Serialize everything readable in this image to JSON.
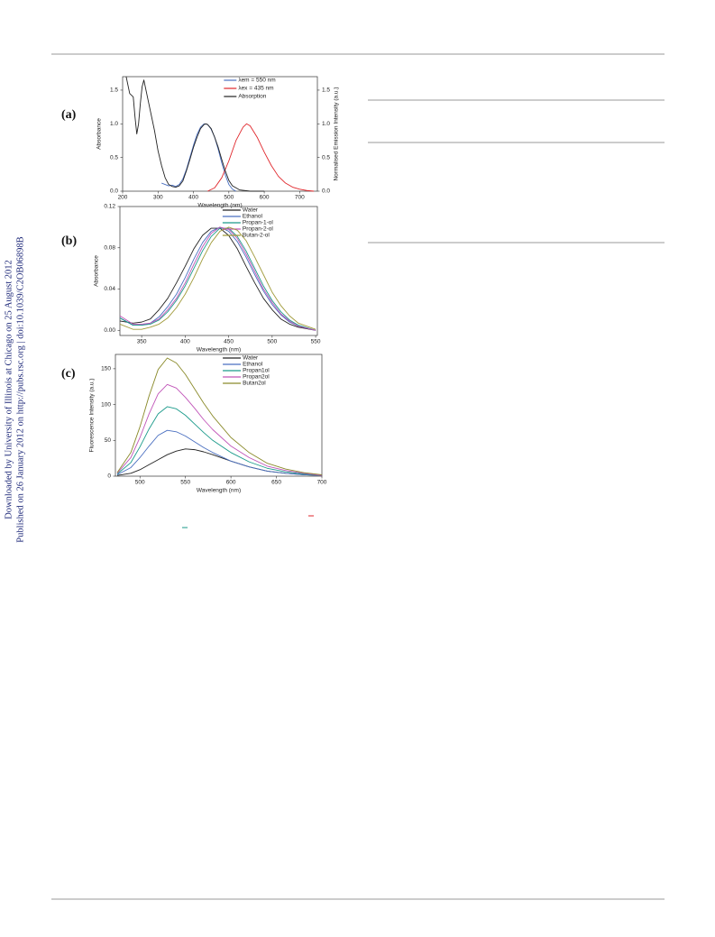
{
  "side_text": [
    "Downloaded by University of Illinois at Chicago on 25 August 2012",
    "Published on 26 January 2012 on http://pubs.rsc.org | doi:10.1039/C2OB06898B"
  ],
  "chart_data": [
    {
      "type": "line",
      "panel": "(a)",
      "xlabel": "Wavelength (nm)",
      "ylabel": "Absorbance",
      "y2label": "Normalised Emission Intensity (a.u.)",
      "xlim": [
        200,
        750
      ],
      "xticks": [
        200,
        300,
        400,
        500,
        600,
        700
      ],
      "ylim": [
        0,
        1.7
      ],
      "yticks": [
        {
          "value": 0,
          "label": "0.0"
        },
        0.5,
        {
          "value": 1,
          "label": "1.0"
        },
        1.5
      ],
      "y2lim": [
        0,
        1.7
      ],
      "y2ticks": [
        {
          "value": 0,
          "label": "0.0"
        },
        0.5,
        {
          "value": 1,
          "label": "1.0"
        },
        1.5
      ],
      "legend": "upper right",
      "series": [
        {
          "name": "λem = 550 nm",
          "color": "#4a6fc0",
          "x": [
            310,
            320,
            330,
            340,
            350,
            360,
            370,
            380,
            390,
            400,
            410,
            420,
            430,
            440,
            450,
            460,
            470,
            480,
            490,
            500,
            510,
            520
          ],
          "values": [
            0.12,
            0.1,
            0.08,
            0.09,
            0.07,
            0.1,
            0.18,
            0.32,
            0.5,
            0.68,
            0.84,
            0.95,
            1.0,
            0.99,
            0.92,
            0.8,
            0.62,
            0.42,
            0.24,
            0.1,
            0.03,
            0.0
          ]
        },
        {
          "name": "λex = 435 nm",
          "color": "#e0262b",
          "axis": "y2",
          "x": [
            440,
            460,
            480,
            500,
            520,
            540,
            550,
            560,
            580,
            600,
            620,
            640,
            660,
            680,
            700,
            720,
            740
          ],
          "values": [
            0.0,
            0.05,
            0.2,
            0.45,
            0.75,
            0.95,
            1.0,
            0.97,
            0.8,
            0.58,
            0.38,
            0.22,
            0.12,
            0.06,
            0.03,
            0.01,
            0.0
          ]
        },
        {
          "name": "Absorption",
          "color": "#222222",
          "x": [
            210,
            220,
            230,
            235,
            240,
            245,
            250,
            255,
            260,
            270,
            280,
            290,
            300,
            310,
            320,
            330,
            340,
            350,
            360,
            370,
            380,
            390,
            400,
            410,
            420,
            430,
            435,
            440,
            450,
            460,
            470,
            480,
            490,
            500,
            510,
            530,
            560,
            600
          ],
          "values": [
            1.7,
            1.45,
            1.4,
            1.1,
            0.85,
            1.0,
            1.3,
            1.55,
            1.65,
            1.4,
            1.15,
            0.9,
            0.6,
            0.38,
            0.2,
            0.1,
            0.07,
            0.06,
            0.08,
            0.15,
            0.3,
            0.47,
            0.65,
            0.8,
            0.93,
            0.99,
            1.0,
            0.99,
            0.93,
            0.8,
            0.65,
            0.47,
            0.3,
            0.16,
            0.08,
            0.02,
            0.0,
            0.0
          ]
        }
      ]
    },
    {
      "type": "line",
      "panel": "(b)",
      "xlabel": "Wavelength (nm)",
      "ylabel": "Absorbance",
      "xlim": [
        325,
        552
      ],
      "xticks": [
        350,
        400,
        450,
        500,
        550
      ],
      "ylim": [
        -0.005,
        0.12
      ],
      "yticks": [
        {
          "value": 0,
          "label": "0.00"
        },
        0.04,
        0.08,
        0.12
      ],
      "legend": "upper right",
      "x": [
        325,
        340,
        350,
        360,
        370,
        380,
        390,
        400,
        410,
        420,
        430,
        440,
        450,
        460,
        470,
        480,
        490,
        500,
        510,
        520,
        530,
        550
      ],
      "series": [
        {
          "name": "Water",
          "color": "#222222",
          "values": [
            0.009,
            0.007,
            0.008,
            0.011,
            0.02,
            0.031,
            0.046,
            0.062,
            0.079,
            0.092,
            0.099,
            0.099,
            0.092,
            0.079,
            0.062,
            0.046,
            0.031,
            0.02,
            0.011,
            0.006,
            0.003,
            0.0
          ]
        },
        {
          "name": "Ethanol",
          "color": "#4a6fc0",
          "values": [
            0.012,
            0.005,
            0.005,
            0.007,
            0.013,
            0.023,
            0.035,
            0.051,
            0.069,
            0.085,
            0.096,
            0.1,
            0.096,
            0.086,
            0.071,
            0.054,
            0.038,
            0.025,
            0.015,
            0.008,
            0.004,
            0.0
          ]
        },
        {
          "name": "Propan-1-ol",
          "color": "#1a9a8a",
          "values": [
            0.012,
            0.005,
            0.005,
            0.006,
            0.01,
            0.018,
            0.029,
            0.043,
            0.06,
            0.077,
            0.091,
            0.099,
            0.099,
            0.091,
            0.077,
            0.06,
            0.043,
            0.029,
            0.018,
            0.01,
            0.005,
            0.0
          ]
        },
        {
          "name": "Propan-2-ol",
          "color": "#c054b8",
          "values": [
            0.014,
            0.006,
            0.006,
            0.007,
            0.011,
            0.02,
            0.031,
            0.046,
            0.064,
            0.081,
            0.094,
            0.1,
            0.098,
            0.089,
            0.074,
            0.057,
            0.04,
            0.027,
            0.016,
            0.009,
            0.004,
            0.0
          ]
        },
        {
          "name": "Butan-2-ol",
          "color": "#a09a3a",
          "values": [
            0.006,
            0.001,
            0.001,
            0.003,
            0.006,
            0.012,
            0.022,
            0.035,
            0.051,
            0.069,
            0.085,
            0.096,
            0.1,
            0.097,
            0.087,
            0.071,
            0.054,
            0.037,
            0.024,
            0.014,
            0.007,
            0.001
          ]
        }
      ]
    },
    {
      "type": "line",
      "panel": "(c)",
      "xlabel": "Wavelength (nm)",
      "ylabel": "Fluorescence Intensity (a.u.)",
      "xlim": [
        473,
        700
      ],
      "xticks": [
        500,
        550,
        600,
        650,
        700
      ],
      "ylim": [
        0,
        170
      ],
      "yticks": [
        0,
        50,
        100,
        150
      ],
      "legend": "upper right",
      "x": [
        475,
        490,
        500,
        510,
        520,
        530,
        540,
        550,
        560,
        570,
        580,
        600,
        620,
        640,
        660,
        680,
        700
      ],
      "series": [
        {
          "name": "Water",
          "color": "#222222",
          "values": [
            1,
            4,
            9,
            16,
            23,
            30,
            35,
            38,
            37,
            34,
            30,
            21,
            13,
            7,
            4,
            2,
            1
          ]
        },
        {
          "name": "Ethanol",
          "color": "#4a6fc0",
          "values": [
            2,
            12,
            26,
            42,
            57,
            64,
            62,
            56,
            48,
            40,
            33,
            21,
            13,
            7,
            4,
            2,
            1
          ]
        },
        {
          "name": "Propan1ol",
          "color": "#1a9a8a",
          "values": [
            3,
            19,
            41,
            66,
            87,
            97,
            94,
            85,
            73,
            61,
            50,
            33,
            20,
            11,
            6,
            3,
            1
          ]
        },
        {
          "name": "Propan2ol",
          "color": "#c054b8",
          "values": [
            4,
            26,
            54,
            87,
            115,
            128,
            123,
            110,
            95,
            79,
            65,
            42,
            26,
            14,
            8,
            4,
            1
          ]
        },
        {
          "name": "Butan2ol",
          "color": "#8a8a2a",
          "values": [
            5,
            33,
            69,
            112,
            149,
            165,
            158,
            142,
            122,
            102,
            84,
            54,
            33,
            18,
            10,
            5,
            2
          ]
        }
      ]
    }
  ]
}
